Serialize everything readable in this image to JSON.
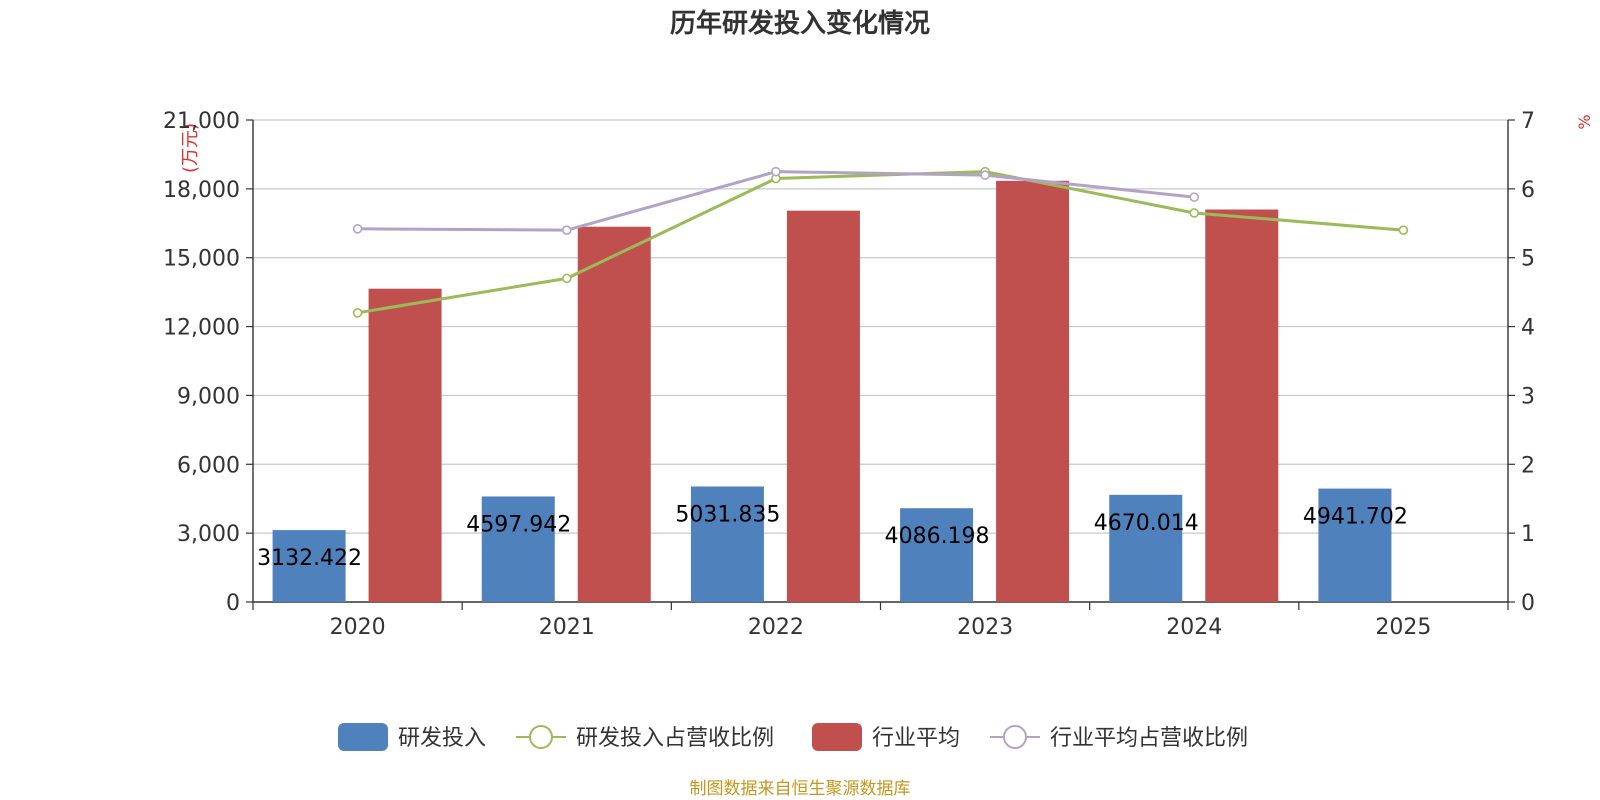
{
  "colors": {
    "rd": "#4f81bd",
    "rd_ratio": "#9bbb59",
    "industry": "#c0504d",
    "industry_ratio": "#b3a2c7",
    "grid": "#c8c8c8",
    "axis": "#333333",
    "unit": "#e0312f",
    "source": "#c8961e"
  },
  "chart_data": {
    "type": "bar",
    "title": "历年研发投入变化情况",
    "categories": [
      "2020",
      "2021",
      "2022",
      "2023",
      "2024",
      "2025"
    ],
    "y_left": {
      "unit_label": "(万元)",
      "ylim": [
        0,
        21000
      ],
      "ticks": [
        "0",
        "3,000",
        "6,000",
        "9,000",
        "12,000",
        "15,000",
        "18,000",
        "21,000"
      ]
    },
    "y_right": {
      "unit_label": "%",
      "ylim": [
        0,
        7
      ],
      "ticks": [
        "0",
        "1",
        "2",
        "3",
        "4",
        "5",
        "6",
        "7"
      ]
    },
    "series": [
      {
        "name": "研发投入",
        "kind": "bar",
        "axis": "left",
        "values": [
          3132.422,
          4597.942,
          5031.835,
          4086.198,
          4670.014,
          4941.702
        ],
        "labels": [
          "3132.422",
          "4597.942",
          "5031.835",
          "4086.198",
          "4670.014",
          "4941.702"
        ]
      },
      {
        "name": "研发投入占营收比例",
        "kind": "line",
        "axis": "right",
        "values": [
          4.2,
          4.7,
          6.15,
          6.25,
          5.65,
          5.4
        ]
      },
      {
        "name": "行业平均",
        "kind": "bar",
        "axis": "left",
        "values": [
          13650,
          16350,
          17050,
          18350,
          17100,
          null
        ]
      },
      {
        "name": "行业平均占营收比例",
        "kind": "line",
        "axis": "right",
        "values": [
          5.42,
          5.4,
          6.25,
          6.2,
          5.88,
          null
        ]
      }
    ],
    "grid": true,
    "legend_position": "bottom"
  },
  "source_note": "制图数据来自恒生聚源数据库"
}
